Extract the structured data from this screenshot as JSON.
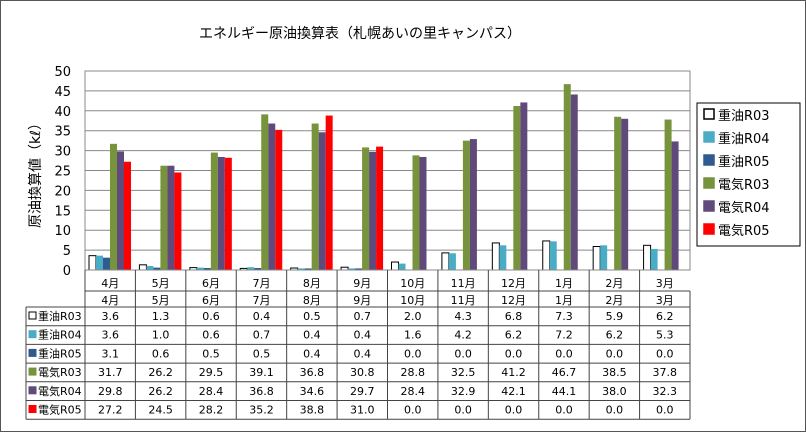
{
  "chart_data": {
    "type": "bar",
    "title": "エネルギー原油換算表（札幌あいの里キャンパス）",
    "xlabel": "",
    "ylabel": "原油換算値（kℓ）",
    "ylim": [
      0,
      50
    ],
    "yticks": [
      0,
      5,
      10,
      15,
      20,
      25,
      30,
      35,
      40,
      45,
      50
    ],
    "grid": true,
    "legend_position": "right",
    "categories": [
      "4月",
      "5月",
      "6月",
      "7月",
      "8月",
      "9月",
      "10月",
      "11月",
      "12月",
      "1月",
      "2月",
      "3月"
    ],
    "series": [
      {
        "name": "重油R03",
        "color": "#ffffff",
        "stroke": "#000000",
        "values": [
          3.6,
          1.3,
          0.6,
          0.4,
          0.5,
          0.7,
          2.0,
          4.3,
          6.8,
          7.3,
          5.9,
          6.2
        ]
      },
      {
        "name": "重油R04",
        "color": "#4bacc6",
        "stroke": "none",
        "values": [
          3.6,
          1.0,
          0.6,
          0.7,
          0.4,
          0.4,
          1.6,
          4.2,
          6.2,
          7.2,
          6.2,
          5.3
        ]
      },
      {
        "name": "重油R05",
        "color": "#2f5b8f",
        "stroke": "none",
        "values": [
          3.1,
          0.6,
          0.5,
          0.5,
          0.4,
          0.4,
          0.0,
          0.0,
          0.0,
          0.0,
          0.0,
          0.0
        ]
      },
      {
        "name": "電気R03",
        "color": "#77933c",
        "stroke": "none",
        "values": [
          31.7,
          26.2,
          29.5,
          39.1,
          36.8,
          30.8,
          28.8,
          32.5,
          41.2,
          46.7,
          38.5,
          37.8
        ]
      },
      {
        "name": "電気R04",
        "color": "#604a7b",
        "stroke": "none",
        "values": [
          29.8,
          26.2,
          28.4,
          36.8,
          34.6,
          29.7,
          28.4,
          32.9,
          42.1,
          44.1,
          38.0,
          32.3
        ]
      },
      {
        "name": "電気R05",
        "color": "#ff0000",
        "stroke": "none",
        "values": [
          27.2,
          24.5,
          28.2,
          35.2,
          38.8,
          31.0,
          0.0,
          0.0,
          0.0,
          0.0,
          0.0,
          0.0
        ]
      }
    ]
  }
}
